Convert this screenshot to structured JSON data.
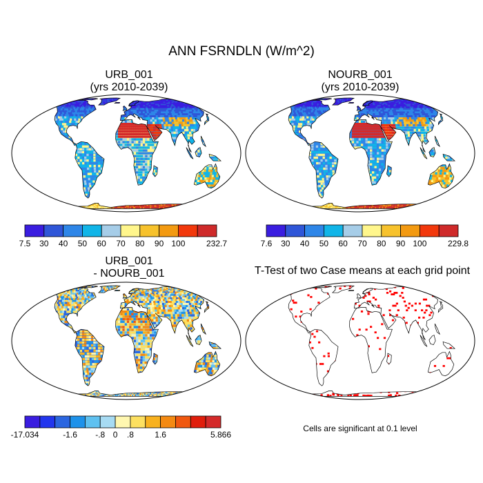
{
  "main_title": "ANN FSRNDLN (W/m^2)",
  "panels": [
    {
      "title_line1": "URB_001",
      "title_line2": "(yrs 2010-2039)",
      "colorbar": {
        "labels": [
          "7.5",
          "30",
          "40",
          "50",
          "60",
          "70",
          "80",
          "90",
          "100",
          "232.7"
        ],
        "colors": [
          "#3a1de0",
          "#2f56d8",
          "#2e86e8",
          "#11b5e8",
          "#a6cde8",
          "#fff68c",
          "#f7c22c",
          "#f39a11",
          "#f2380c",
          "#cf2a2a"
        ]
      }
    },
    {
      "title_line1": "NOURB_001",
      "title_line2": "(yrs 2010-2039)",
      "colorbar": {
        "labels": [
          "7.6",
          "30",
          "40",
          "50",
          "60",
          "70",
          "80",
          "90",
          "100",
          "229.8"
        ],
        "colors": [
          "#3a1de0",
          "#2f56d8",
          "#2e86e8",
          "#11b5e8",
          "#a6cde8",
          "#fff68c",
          "#f7c22c",
          "#f39a11",
          "#f2380c",
          "#cf2a2a"
        ]
      }
    },
    {
      "title_line1": "URB_001",
      "title_line2": "- NOURB_001",
      "colorbar": {
        "labels": [
          "-17.034",
          "-1.6",
          "-.8",
          "0",
          ".8",
          "1.6",
          "5.866"
        ],
        "colors": [
          "#3a1de0",
          "#2236ee",
          "#2b66e0",
          "#1e92ea",
          "#5fc1f0",
          "#a7dbf3",
          "#fff7b0",
          "#fde060",
          "#f8b11e",
          "#f48a12",
          "#f0580f",
          "#e01e0c",
          "#d42a2a"
        ]
      }
    },
    {
      "title": "T-Test of two Case means at each grid point",
      "note": "Cells are significant at 0.1 level",
      "significance_color": "#ff0000"
    }
  ]
}
